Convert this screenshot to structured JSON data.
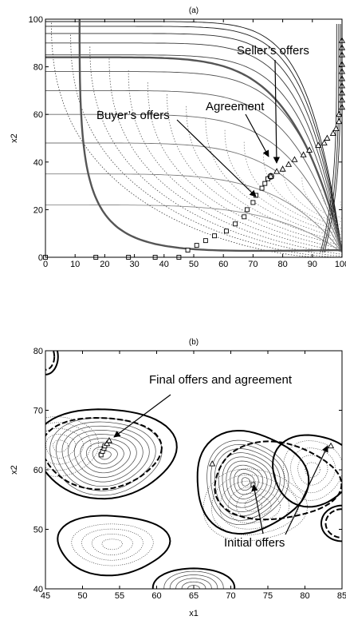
{
  "chart_data": [
    {
      "type": "line",
      "panel_label": "(a)",
      "xlabel": "",
      "ylabel": "x2",
      "xlim": [
        0,
        100
      ],
      "ylim": [
        0,
        100
      ],
      "xticks": [
        0,
        10,
        20,
        30,
        40,
        50,
        60,
        70,
        80,
        90,
        100
      ],
      "xtick_labels": [
        "0",
        "10",
        "20",
        "30",
        "40",
        "50",
        "60",
        "70",
        "80",
        "90",
        "100"
      ],
      "yticks": [
        0,
        20,
        40,
        60,
        80,
        100
      ],
      "ytick_labels": [
        "0",
        "20",
        "40",
        "60",
        "80",
        "100"
      ],
      "grid": false,
      "series": [
        {
          "marker": "square",
          "points": [
            [
              0,
              0
            ],
            [
              17,
              0
            ],
            [
              28,
              0
            ],
            [
              37,
              0
            ],
            [
              45,
              0
            ],
            [
              48,
              3
            ],
            [
              51,
              5
            ],
            [
              54,
              7
            ],
            [
              57,
              9
            ],
            [
              61,
              11
            ],
            [
              64,
              14
            ],
            [
              67,
              17
            ],
            [
              68,
              20
            ],
            [
              70,
              23
            ],
            [
              71,
              26
            ],
            [
              73,
              29
            ],
            [
              74,
              31
            ],
            [
              75,
              33
            ]
          ]
        },
        {
          "marker": "triangle",
          "points": [
            [
              76,
              34
            ],
            [
              78,
              36
            ],
            [
              80,
              37
            ],
            [
              82,
              39
            ],
            [
              84,
              41
            ],
            [
              87,
              43
            ],
            [
              89,
              45
            ],
            [
              92,
              47
            ],
            [
              94,
              48
            ],
            [
              95,
              50
            ],
            [
              97,
              52
            ],
            [
              98,
              54
            ],
            [
              99,
              57
            ],
            [
              99,
              60
            ],
            [
              100,
              63
            ],
            [
              100,
              66
            ],
            [
              100,
              69
            ],
            [
              100,
              72
            ],
            [
              100,
              75
            ],
            [
              100,
              78
            ],
            [
              100,
              81
            ],
            [
              100,
              85
            ],
            [
              100,
              88
            ],
            [
              100,
              91
            ]
          ]
        }
      ],
      "agreement_point": [
        76,
        34
      ],
      "annotations": [
        {
          "text": "Seller’s offers",
          "target": [
            79,
            38
          ]
        },
        {
          "text": "Agreement",
          "target": [
            76,
            35
          ]
        },
        {
          "text": "Buyer’s offers",
          "target": [
            70,
            25
          ]
        }
      ]
    },
    {
      "type": "contour",
      "panel_label": "(b)",
      "xlabel": "x1",
      "ylabel": "x2",
      "xlim": [
        45,
        85
      ],
      "ylim": [
        40,
        80
      ],
      "xticks": [
        45,
        50,
        55,
        60,
        65,
        70,
        75,
        80,
        85
      ],
      "xtick_labels": [
        "45",
        "50",
        "55",
        "60",
        "65",
        "70",
        "75",
        "80",
        "85"
      ],
      "yticks": [
        40,
        50,
        60,
        70,
        80
      ],
      "ytick_labels": [
        "40",
        "50",
        "60",
        "70",
        "80"
      ],
      "grid": false,
      "series": [
        {
          "marker": "square",
          "points": [
            [
              52.5,
              62.5
            ],
            [
              52.7,
              63.1
            ],
            [
              52.9,
              63.6
            ],
            [
              53.0,
              64.0
            ],
            [
              73,
              57.5
            ]
          ]
        },
        {
          "marker": "triangle",
          "points": [
            [
              53.3,
              64.4
            ],
            [
              53.6,
              64.9
            ],
            [
              67.5,
              61
            ],
            [
              83.5,
              64
            ]
          ]
        }
      ],
      "annotations": [
        {
          "text": "Final offers and agreement",
          "target": [
            54,
            65.2
          ]
        },
        {
          "text": "Initial offers",
          "targets": [
            [
              73,
              56.5
            ],
            [
              83.7,
              64
            ]
          ]
        }
      ]
    }
  ]
}
